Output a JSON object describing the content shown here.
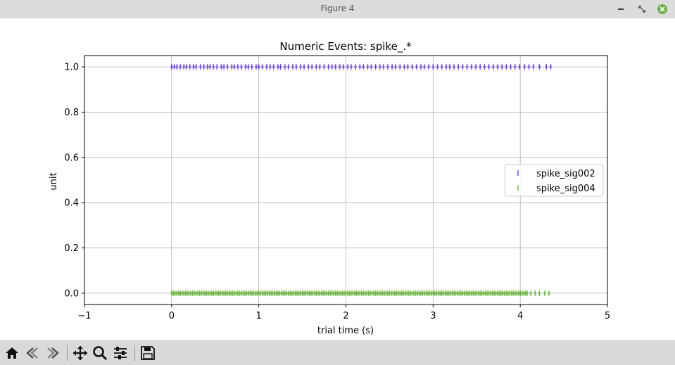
{
  "window": {
    "title": "Figure 4",
    "controls": {
      "minimize_icon": "minimize-icon",
      "maximize_icon": "maximize-icon",
      "close_icon": "close-icon",
      "close_color": "#6fb04a"
    }
  },
  "toolbar": {
    "buttons": [
      {
        "name": "home-button",
        "icon": "home-icon"
      },
      {
        "name": "back-button",
        "icon": "arrow-left-icon"
      },
      {
        "name": "forward-button",
        "icon": "arrow-right-icon"
      },
      {
        "name": "pan-button",
        "icon": "move-icon"
      },
      {
        "name": "zoom-button",
        "icon": "magnifier-icon"
      },
      {
        "name": "configure-subplots-button",
        "icon": "sliders-icon"
      },
      {
        "name": "save-button",
        "icon": "floppy-disk-icon"
      }
    ]
  },
  "chart_data": {
    "type": "scatter",
    "title": "Numeric Events: spike_.*",
    "xlabel": "trial time (s)",
    "ylabel": "unit",
    "xlim": [
      -1,
      5
    ],
    "ylim": [
      -0.05,
      1.05
    ],
    "xticks": [
      -1,
      0,
      1,
      2,
      3,
      4,
      5
    ],
    "xtick_labels": [
      "−1",
      "0",
      "1",
      "2",
      "3",
      "4",
      "5"
    ],
    "yticks": [
      0.0,
      0.2,
      0.4,
      0.6,
      0.8,
      1.0
    ],
    "ytick_labels": [
      "0.0",
      "0.2",
      "0.4",
      "0.6",
      "0.8",
      "1.0"
    ],
    "grid": true,
    "legend_position": "center-right",
    "series": [
      {
        "name": "spike_sig002",
        "color": "#5522cc",
        "marker": "|",
        "y": 1,
        "x": [
          0.0,
          0.03,
          0.06,
          0.1,
          0.14,
          0.17,
          0.21,
          0.25,
          0.28,
          0.33,
          0.37,
          0.41,
          0.44,
          0.48,
          0.52,
          0.57,
          0.6,
          0.64,
          0.69,
          0.72,
          0.76,
          0.8,
          0.85,
          0.88,
          0.92,
          0.97,
          1.0,
          1.04,
          1.09,
          1.13,
          1.17,
          1.22,
          1.25,
          1.3,
          1.34,
          1.39,
          1.43,
          1.48,
          1.52,
          1.57,
          1.61,
          1.66,
          1.7,
          1.75,
          1.8,
          1.84,
          1.88,
          1.93,
          1.97,
          2.02,
          2.06,
          2.11,
          2.16,
          2.2,
          2.25,
          2.29,
          2.34,
          2.39,
          2.43,
          2.48,
          2.53,
          2.57,
          2.62,
          2.67,
          2.71,
          2.76,
          2.81,
          2.86,
          2.9,
          2.95,
          3.0,
          3.05,
          3.1,
          3.15,
          3.19,
          3.24,
          3.29,
          3.34,
          3.39,
          3.44,
          3.49,
          3.54,
          3.59,
          3.64,
          3.69,
          3.74,
          3.79,
          3.84,
          3.89,
          3.94,
          3.99,
          4.05,
          4.1,
          4.15,
          4.22,
          4.3,
          4.35
        ]
      },
      {
        "name": "spike_sig004",
        "color": "#55aa22",
        "marker": "|",
        "y": 0,
        "x": [
          0.0,
          0.02,
          0.04,
          0.06,
          0.08,
          0.1,
          0.12,
          0.14,
          0.16,
          0.18,
          0.2,
          0.22,
          0.24,
          0.26,
          0.28,
          0.3,
          0.32,
          0.34,
          0.36,
          0.38,
          0.4,
          0.42,
          0.44,
          0.46,
          0.48,
          0.5,
          0.52,
          0.54,
          0.56,
          0.58,
          0.6,
          0.62,
          0.64,
          0.66,
          0.68,
          0.7,
          0.72,
          0.74,
          0.76,
          0.78,
          0.8,
          0.82,
          0.84,
          0.86,
          0.88,
          0.9,
          0.92,
          0.94,
          0.96,
          0.98,
          1.0,
          1.02,
          1.04,
          1.06,
          1.08,
          1.1,
          1.12,
          1.14,
          1.16,
          1.18,
          1.2,
          1.22,
          1.24,
          1.26,
          1.28,
          1.3,
          1.32,
          1.34,
          1.36,
          1.38,
          1.4,
          1.42,
          1.44,
          1.46,
          1.48,
          1.5,
          1.52,
          1.54,
          1.56,
          1.58,
          1.6,
          1.62,
          1.64,
          1.66,
          1.68,
          1.7,
          1.72,
          1.74,
          1.76,
          1.78,
          1.8,
          1.82,
          1.84,
          1.86,
          1.88,
          1.9,
          1.92,
          1.94,
          1.96,
          1.98,
          2.0,
          2.02,
          2.04,
          2.06,
          2.08,
          2.1,
          2.12,
          2.14,
          2.16,
          2.18,
          2.2,
          2.22,
          2.24,
          2.26,
          2.28,
          2.3,
          2.32,
          2.34,
          2.36,
          2.38,
          2.4,
          2.42,
          2.44,
          2.46,
          2.48,
          2.5,
          2.52,
          2.54,
          2.56,
          2.58,
          2.6,
          2.62,
          2.64,
          2.66,
          2.68,
          2.7,
          2.72,
          2.74,
          2.76,
          2.78,
          2.8,
          2.82,
          2.84,
          2.86,
          2.88,
          2.9,
          2.92,
          2.94,
          2.96,
          2.98,
          3.0,
          3.02,
          3.04,
          3.06,
          3.08,
          3.1,
          3.12,
          3.14,
          3.16,
          3.18,
          3.2,
          3.22,
          3.24,
          3.26,
          3.28,
          3.3,
          3.32,
          3.34,
          3.36,
          3.38,
          3.4,
          3.42,
          3.44,
          3.46,
          3.48,
          3.5,
          3.52,
          3.54,
          3.56,
          3.58,
          3.6,
          3.62,
          3.64,
          3.66,
          3.68,
          3.7,
          3.72,
          3.74,
          3.76,
          3.78,
          3.8,
          3.82,
          3.84,
          3.86,
          3.88,
          3.9,
          3.92,
          3.94,
          3.96,
          3.98,
          4.0,
          4.02,
          4.04,
          4.06,
          4.08,
          4.12,
          4.17,
          4.22,
          4.28,
          4.33
        ]
      }
    ]
  }
}
